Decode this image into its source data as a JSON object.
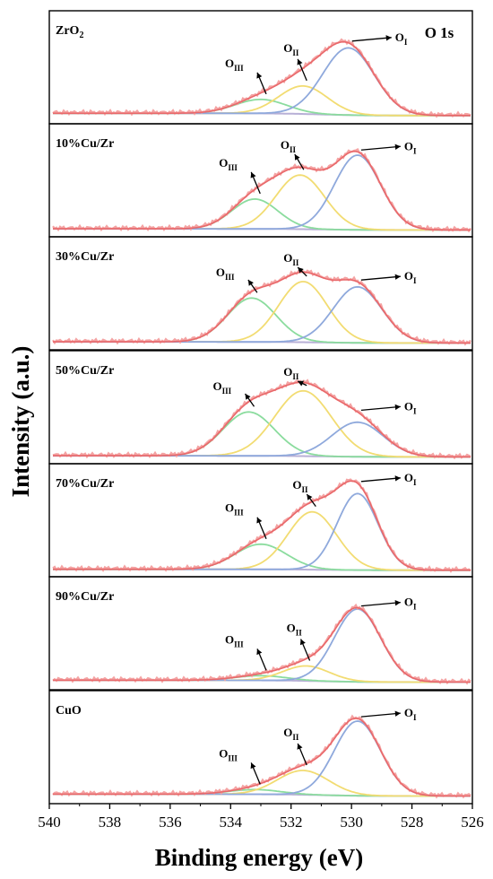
{
  "chart_data": {
    "type": "line",
    "xlabel": "Binding energy (eV)",
    "ylabel": "Intensity (a.u.)",
    "xlim": [
      540,
      526
    ],
    "xticks": [
      540,
      538,
      536,
      534,
      532,
      530,
      528,
      526
    ],
    "region_label": "O 1s",
    "colors": {
      "raw": "#f4a3a3",
      "fit": "#e9686a",
      "O_I": "#8fa9dc",
      "O_II": "#f2dc72",
      "O_III": "#8bdc9e",
      "background": "#b8b0d6"
    },
    "peak_symbols": {
      "main": "O",
      "I": "I",
      "II": "II",
      "III": "III"
    },
    "panels": [
      {
        "name": "ZrO",
        "name_sub": "2",
        "bg": 0.1,
        "peaks": {
          "O_I": {
            "center": 530.1,
            "height": 0.72,
            "fwhm": 2.0
          },
          "O_II": {
            "center": 531.6,
            "height": 0.3,
            "fwhm": 1.9
          },
          "O_III": {
            "center": 533.0,
            "height": 0.15,
            "fwhm": 2.0
          }
        }
      },
      {
        "name": "10%Cu/Zr",
        "bg": 0.05,
        "peaks": {
          "O_I": {
            "center": 529.8,
            "height": 0.8,
            "fwhm": 1.8
          },
          "O_II": {
            "center": 531.7,
            "height": 0.58,
            "fwhm": 1.9
          },
          "O_III": {
            "center": 533.2,
            "height": 0.32,
            "fwhm": 1.8
          }
        }
      },
      {
        "name": "30%Cu/Zr",
        "bg": 0.05,
        "peaks": {
          "O_I": {
            "center": 529.8,
            "height": 0.6,
            "fwhm": 1.9
          },
          "O_II": {
            "center": 531.6,
            "height": 0.65,
            "fwhm": 1.9
          },
          "O_III": {
            "center": 533.3,
            "height": 0.47,
            "fwhm": 1.9
          }
        }
      },
      {
        "name": "50%Cu/Zr",
        "bg": 0.05,
        "peaks": {
          "O_I": {
            "center": 529.8,
            "height": 0.37,
            "fwhm": 2.0
          },
          "O_II": {
            "center": 531.6,
            "height": 0.7,
            "fwhm": 2.2
          },
          "O_III": {
            "center": 533.4,
            "height": 0.47,
            "fwhm": 2.0
          }
        }
      },
      {
        "name": "70%Cu/Zr",
        "bg": 0.04,
        "peaks": {
          "O_I": {
            "center": 529.8,
            "height": 0.82,
            "fwhm": 1.6
          },
          "O_II": {
            "center": 531.3,
            "height": 0.62,
            "fwhm": 1.9
          },
          "O_III": {
            "center": 533.0,
            "height": 0.27,
            "fwhm": 2.0
          }
        }
      },
      {
        "name": "90%Cu/Zr",
        "bg": 0.08,
        "peaks": {
          "O_I": {
            "center": 529.8,
            "height": 0.78,
            "fwhm": 1.8
          },
          "O_II": {
            "center": 531.5,
            "height": 0.16,
            "fwhm": 1.8
          },
          "O_III": {
            "center": 533.0,
            "height": 0.05,
            "fwhm": 2.0
          }
        }
      },
      {
        "name": "CuO",
        "bg": 0.08,
        "peaks": {
          "O_I": {
            "center": 529.8,
            "height": 0.8,
            "fwhm": 1.8
          },
          "O_II": {
            "center": 531.6,
            "height": 0.26,
            "fwhm": 2.0
          },
          "O_III": {
            "center": 533.2,
            "height": 0.05,
            "fwhm": 2.0
          }
        }
      }
    ]
  }
}
